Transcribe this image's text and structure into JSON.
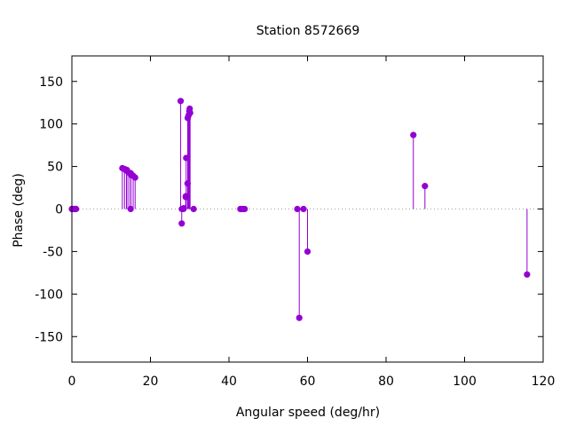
{
  "chart_data": {
    "type": "scatter",
    "style": "impulses-with-points",
    "title": "Station 8572669",
    "xlabel": "Angular speed (deg/hr)",
    "ylabel": "Phase (deg)",
    "xlim": [
      0,
      120
    ],
    "ylim": [
      -180,
      180
    ],
    "xticks": [
      0,
      20,
      40,
      60,
      80,
      100,
      120
    ],
    "yticks": [
      -150,
      -100,
      -50,
      0,
      50,
      100,
      150
    ],
    "grid": false,
    "zero_line": true,
    "color": "#9400d3",
    "series": [
      {
        "x": [
          0.0,
          0.04,
          0.08,
          0.5,
          0.55,
          1.0,
          1.05,
          12.85,
          13.4,
          13.9,
          14.0,
          14.5,
          14.96,
          15.0,
          15.04,
          15.6,
          16.1,
          27.7,
          27.97,
          28.0,
          28.4,
          28.5,
          29.0,
          29.0,
          29.1,
          29.45,
          29.5,
          29.7,
          29.9,
          30.0,
          30.1,
          31.0,
          42.9,
          43.0,
          43.5,
          44.0,
          57.4,
          57.9,
          58.98,
          60.0,
          86.95,
          89.9,
          115.9
        ],
        "y": [
          0,
          0,
          0,
          0,
          0,
          0,
          0,
          48,
          47,
          45,
          46,
          43,
          0,
          42,
          40,
          39,
          37,
          127,
          -17,
          0,
          0,
          1,
          14,
          15,
          60,
          30,
          107,
          110,
          115,
          118,
          113,
          0,
          0,
          0,
          0,
          0,
          0,
          -128,
          0,
          -50,
          87,
          27,
          -77
        ]
      }
    ]
  }
}
